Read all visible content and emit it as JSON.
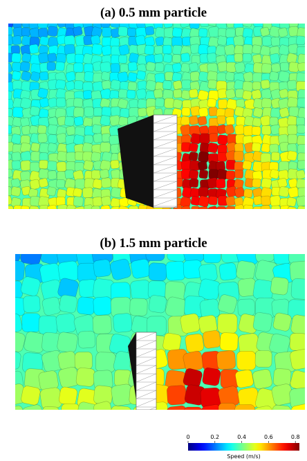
{
  "panels": [
    {
      "title": "(a) 0.5 mm particle"
    },
    {
      "title": "(b) 1.5 mm particle"
    }
  ],
  "colorbar": {
    "label": "Speed (m/s)",
    "lim": [
      0,
      0.83
    ],
    "ticks": [
      0,
      0.2,
      0.4,
      0.6,
      0.8
    ]
  }
}
